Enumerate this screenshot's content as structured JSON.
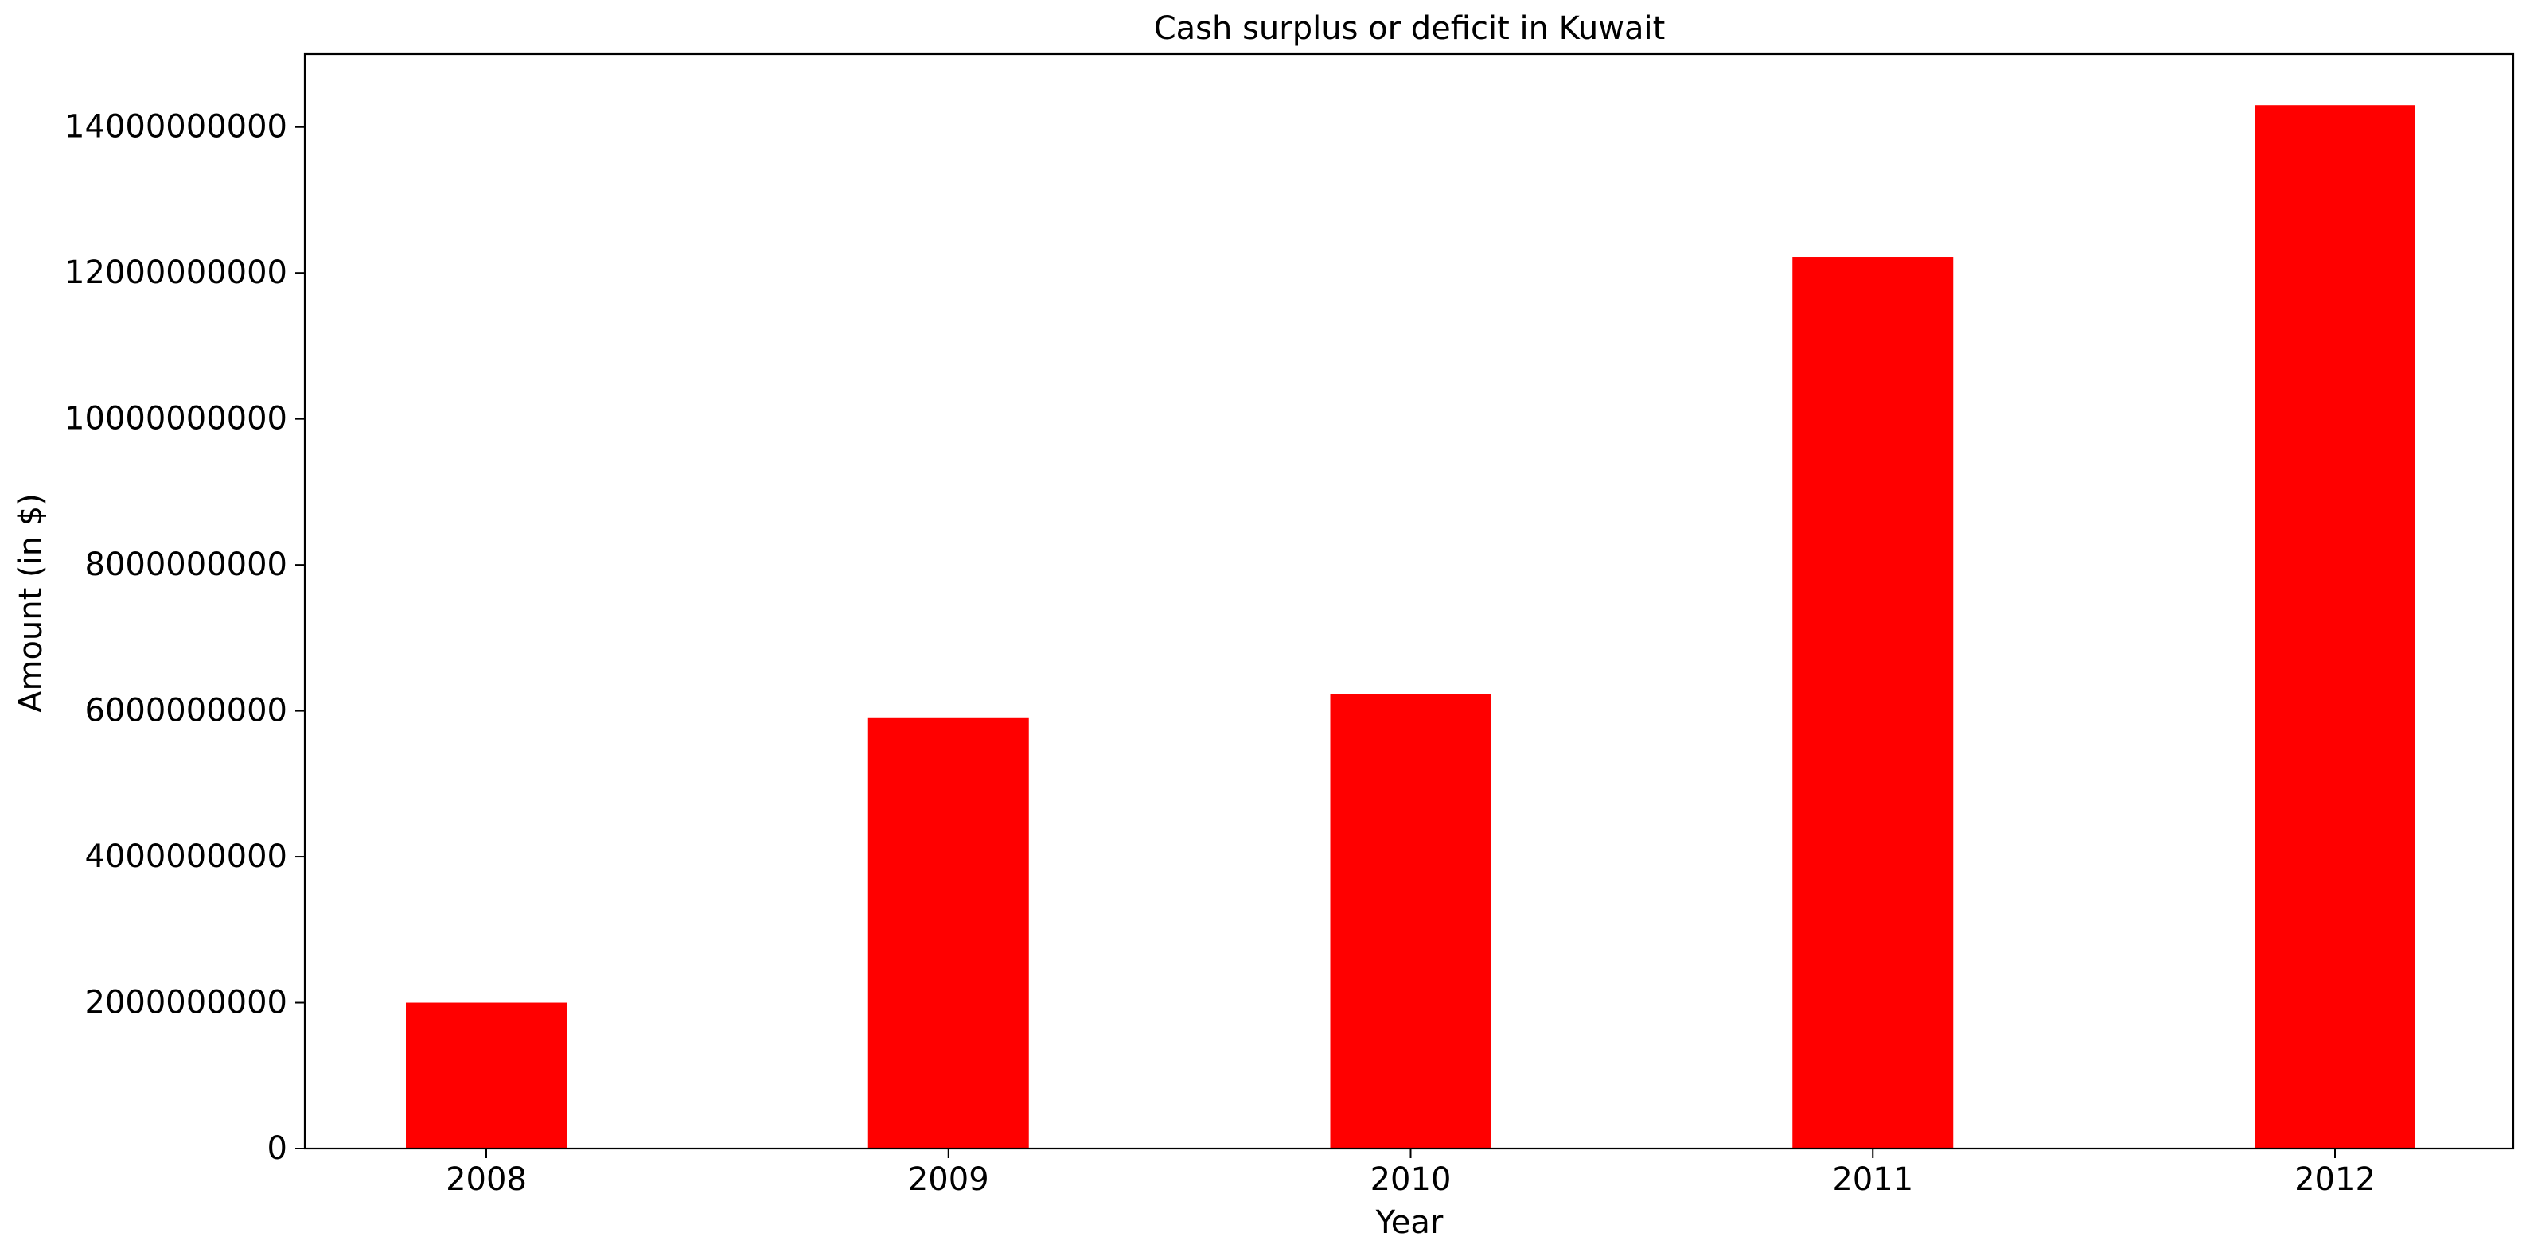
{
  "chart_data": {
    "type": "bar",
    "title": "Cash surplus or deficit in Kuwait",
    "xlabel": "Year",
    "ylabel": "Amount (in $)",
    "categories": [
      "2008",
      "2009",
      "2010",
      "2011",
      "2012"
    ],
    "values": [
      2000000000,
      5900000000,
      6230000000,
      12220000000,
      14300000000
    ],
    "ylim": [
      0,
      15000000000
    ],
    "yticks": [
      0,
      2000000000,
      4000000000,
      6000000000,
      8000000000,
      10000000000,
      12000000000,
      14000000000
    ],
    "ytick_labels": [
      "0",
      "2000000000",
      "4000000000",
      "6000000000",
      "8000000000",
      "10000000000",
      "12000000000",
      "14000000000"
    ],
    "bar_color": "#ff0000",
    "grid": false,
    "legend": "none"
  }
}
